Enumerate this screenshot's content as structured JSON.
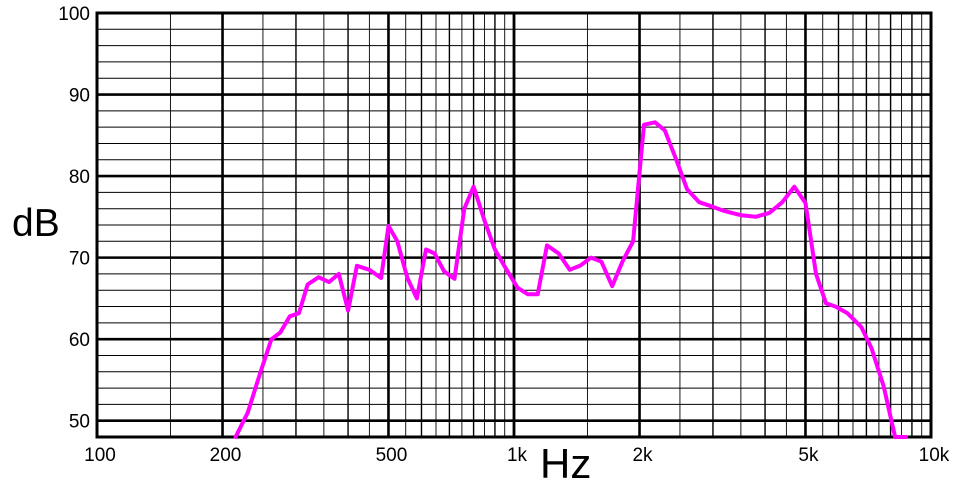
{
  "chart_data": {
    "type": "line",
    "xlabel": "Hz",
    "ylabel": "dB",
    "x_scale": "log",
    "xlim": [
      100,
      10000
    ],
    "ylim": [
      48,
      100
    ],
    "grid": true,
    "x_ticks": [
      {
        "value": 100,
        "label": "100"
      },
      {
        "value": 200,
        "label": "200"
      },
      {
        "value": 500,
        "label": "500"
      },
      {
        "value": 1000,
        "label": "1k"
      },
      {
        "value": 2000,
        "label": "2k"
      },
      {
        "value": 5000,
        "label": "5k"
      },
      {
        "value": 10000,
        "label": "10k"
      }
    ],
    "y_ticks": [
      {
        "value": 50,
        "label": "50"
      },
      {
        "value": 60,
        "label": "60"
      },
      {
        "value": 70,
        "label": "70"
      },
      {
        "value": 80,
        "label": "80"
      },
      {
        "value": 90,
        "label": "90"
      },
      {
        "value": 100,
        "label": "100"
      }
    ],
    "series": [
      {
        "color": "#ff00ff",
        "x": [
          215,
          230,
          245,
          262,
          275,
          290,
          305,
          320,
          340,
          360,
          380,
          400,
          420,
          450,
          480,
          500,
          525,
          555,
          585,
          615,
          645,
          680,
          720,
          760,
          800,
          850,
          900,
          960,
          1020,
          1080,
          1140,
          1200,
          1280,
          1360,
          1440,
          1530,
          1620,
          1720,
          1820,
          1930,
          2050,
          2180,
          2300,
          2450,
          2600,
          2780,
          2970,
          3200,
          3500,
          3800,
          4100,
          4400,
          4700,
          5000,
          5300,
          5600,
          5900,
          6300,
          6800,
          7200,
          7700,
          8200,
          8700
        ],
        "y": [
          48.0,
          51.0,
          55.5,
          60.0,
          60.8,
          62.8,
          63.2,
          66.7,
          67.6,
          67.0,
          68.0,
          63.5,
          69.0,
          68.5,
          67.5,
          73.9,
          72.0,
          67.5,
          65.0,
          71.0,
          70.5,
          68.3,
          67.4,
          76.0,
          78.7,
          74.5,
          71.0,
          68.5,
          66.3,
          65.5,
          65.5,
          71.5,
          70.5,
          68.5,
          69.0,
          70.0,
          69.5,
          66.5,
          69.5,
          72.0,
          86.3,
          86.6,
          85.6,
          82.0,
          78.4,
          76.8,
          76.3,
          75.7,
          75.2,
          75.0,
          75.5,
          76.8,
          78.7,
          76.7,
          68.0,
          64.4,
          64.0,
          63.2,
          61.5,
          58.9,
          54.2,
          48.0,
          48.0
        ]
      }
    ]
  }
}
